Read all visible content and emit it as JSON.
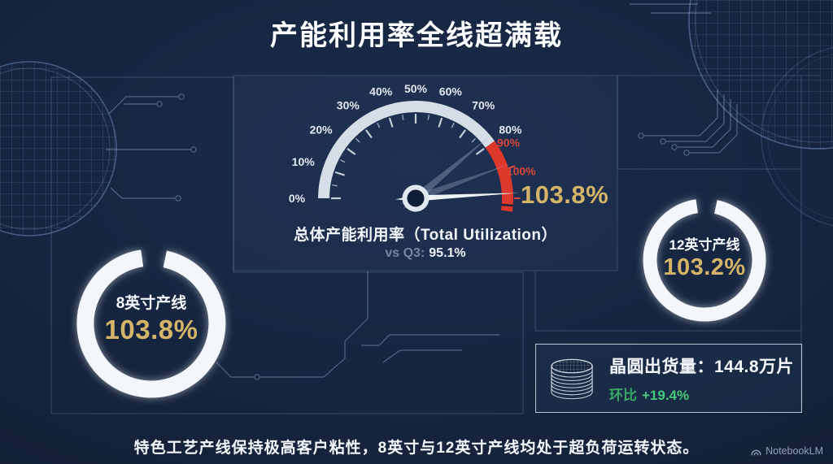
{
  "title": "产能利用率全线超满载",
  "gauge": {
    "caption": "总体产能利用率（Total Utilization）",
    "comparison_label": "vs Q3:",
    "comparison_value": "95.1%",
    "value_label": "103.8%",
    "tick_labels": [
      "0%",
      "10%",
      "20%",
      "30%",
      "40%",
      "50%",
      "60%",
      "70%",
      "80%",
      "90%",
      "100%"
    ]
  },
  "donut_left": {
    "label": "8英寸产线",
    "value_label": "103.8%"
  },
  "donut_right": {
    "label": "12英寸产线",
    "value_label": "103.2%"
  },
  "shipment": {
    "title": "晶圆出货量：144.8万片",
    "change_label": "环比",
    "change_value": "+19.4%"
  },
  "footer": "特色工艺产线保持极高客户粘性，8英寸与12英寸产线均处于超负荷运转状态。",
  "watermark": "NotebookLM",
  "colors": {
    "background": "#14223b",
    "panel_tint": "#1c2d4a",
    "accent_gold": "#d4b469",
    "alert_red": "#dc382c",
    "positive_green": "#46c97a",
    "decor_line": "#3e587d",
    "text_white": "#f2f5f9",
    "text_muted": "#76869f"
  },
  "chart_data": [
    {
      "type": "gauge",
      "title": "总体产能利用率（Total Utilization）",
      "value": 103.8,
      "unit": "%",
      "min": 0,
      "max": 100,
      "tick_step": 10,
      "ticks": [
        0,
        10,
        20,
        30,
        40,
        50,
        60,
        70,
        80,
        90,
        100
      ],
      "red_zone": [
        80,
        100
      ],
      "comparison": {
        "label": "vs Q3",
        "value": 95.1
      }
    },
    {
      "type": "donut",
      "label": "8英寸产线",
      "value": 103.8,
      "unit": "%"
    },
    {
      "type": "donut",
      "label": "12英寸产线",
      "value": 103.2,
      "unit": "%"
    },
    {
      "type": "kpi",
      "label": "晶圆出货量",
      "value": 144.8,
      "unit": "万片",
      "change": {
        "label": "环比",
        "value_pct": 19.4
      }
    }
  ]
}
